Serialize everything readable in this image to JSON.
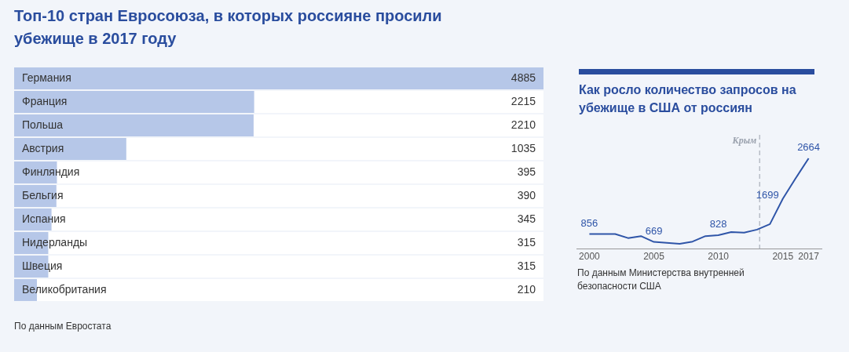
{
  "chart_data": [
    {
      "type": "bar",
      "orientation": "horizontal",
      "title": "Топ-10 стран Евросоюза, в которых россияне просили убежище в 2017 году",
      "categories": [
        "Германия",
        "Франция",
        "Польша",
        "Австрия",
        "Финляндия",
        "Бельгия",
        "Испания",
        "Нидерланды",
        "Швеция",
        "Великобритания"
      ],
      "values": [
        4885,
        2215,
        2210,
        1035,
        395,
        390,
        345,
        315,
        315,
        210
      ],
      "color": "#b6c7e8",
      "xlim": [
        0,
        4885
      ],
      "data_labels": true,
      "grid": false,
      "legend": false,
      "annotations": [
        "По данным Евростата"
      ]
    },
    {
      "type": "line",
      "title": "Как росло количество запросов на убежище в США от россиян",
      "x": [
        2000,
        2001,
        2002,
        2003,
        2004,
        2005,
        2006,
        2007,
        2008,
        2009,
        2010,
        2011,
        2012,
        2013,
        2014,
        2015,
        2016,
        2017
      ],
      "series": [
        {
          "color": "#2f55a8",
          "values": [
            856,
            856,
            856,
            761,
            808,
            669,
            648,
            624,
            677,
            808,
            828,
            904,
            892,
            963,
            1094,
            1699,
            2189,
            2664
          ],
          "value_labels": [
            "856",
            null,
            null,
            null,
            null,
            "669",
            null,
            null,
            null,
            null,
            "828",
            null,
            null,
            null,
            null,
            "1699",
            null,
            "2664"
          ]
        }
      ],
      "xlim": [
        1999,
        2018
      ],
      "xticks": [
        2000,
        2005,
        2010,
        2015,
        2017
      ],
      "tick_labels": "x",
      "grid": false,
      "legend": false,
      "marker": "none",
      "line_style": "solid",
      "ref_lines": [
        {
          "axis": "x",
          "value": 2013.2,
          "label": "Крым",
          "color": "#9aa1ad",
          "line_style": "dashed"
        }
      ],
      "annotations": [
        "По данным Министерства внутренней безопасности США"
      ]
    }
  ]
}
